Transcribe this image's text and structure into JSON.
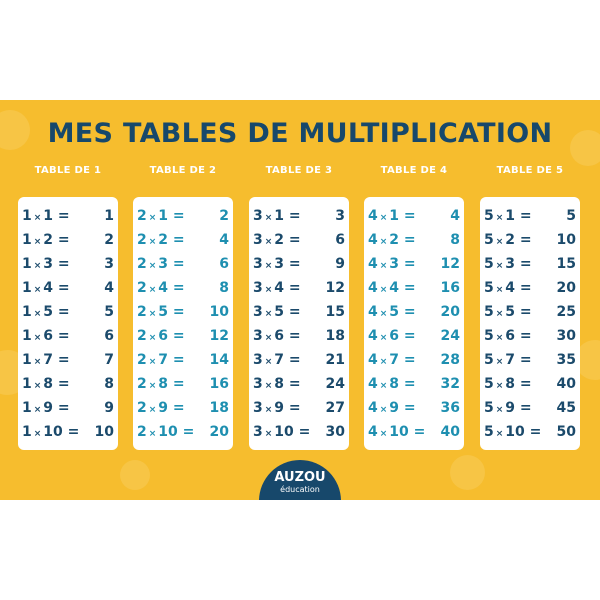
{
  "title": "MES TABLES DE MULTIPLICATION",
  "colors": {
    "background": "#f6bd2e",
    "navy": "#1b4a6b",
    "teal": "#1e8fb0",
    "card": "#ffffff"
  },
  "tables": [
    {
      "header": "TABLE DE 1",
      "color": "#1b4a6b",
      "rows": [
        [
          "1",
          "1",
          "1"
        ],
        [
          "1",
          "2",
          "2"
        ],
        [
          "1",
          "3",
          "3"
        ],
        [
          "1",
          "4",
          "4"
        ],
        [
          "1",
          "5",
          "5"
        ],
        [
          "1",
          "6",
          "6"
        ],
        [
          "1",
          "7",
          "7"
        ],
        [
          "1",
          "8",
          "8"
        ],
        [
          "1",
          "9",
          "9"
        ],
        [
          "1",
          "10",
          "10"
        ]
      ]
    },
    {
      "header": "TABLE DE 2",
      "color": "#1e8fb0",
      "rows": [
        [
          "2",
          "1",
          "2"
        ],
        [
          "2",
          "2",
          "4"
        ],
        [
          "2",
          "3",
          "6"
        ],
        [
          "2",
          "4",
          "8"
        ],
        [
          "2",
          "5",
          "10"
        ],
        [
          "2",
          "6",
          "12"
        ],
        [
          "2",
          "7",
          "14"
        ],
        [
          "2",
          "8",
          "16"
        ],
        [
          "2",
          "9",
          "18"
        ],
        [
          "2",
          "10",
          "20"
        ]
      ]
    },
    {
      "header": "TABLE DE 3",
      "color": "#1b4a6b",
      "rows": [
        [
          "3",
          "1",
          "3"
        ],
        [
          "3",
          "2",
          "6"
        ],
        [
          "3",
          "3",
          "9"
        ],
        [
          "3",
          "4",
          "12"
        ],
        [
          "3",
          "5",
          "15"
        ],
        [
          "3",
          "6",
          "18"
        ],
        [
          "3",
          "7",
          "21"
        ],
        [
          "3",
          "8",
          "24"
        ],
        [
          "3",
          "9",
          "27"
        ],
        [
          "3",
          "10",
          "30"
        ]
      ]
    },
    {
      "header": "TABLE DE 4",
      "color": "#1e8fb0",
      "rows": [
        [
          "4",
          "1",
          "4"
        ],
        [
          "4",
          "2",
          "8"
        ],
        [
          "4",
          "3",
          "12"
        ],
        [
          "4",
          "4",
          "16"
        ],
        [
          "4",
          "5",
          "20"
        ],
        [
          "4",
          "6",
          "24"
        ],
        [
          "4",
          "7",
          "28"
        ],
        [
          "4",
          "8",
          "32"
        ],
        [
          "4",
          "9",
          "36"
        ],
        [
          "4",
          "10",
          "40"
        ]
      ]
    },
    {
      "header": "TABLE DE 5",
      "color": "#1b4a6b",
      "rows": [
        [
          "5",
          "1",
          "5"
        ],
        [
          "5",
          "2",
          "10"
        ],
        [
          "5",
          "3",
          "15"
        ],
        [
          "5",
          "4",
          "20"
        ],
        [
          "5",
          "5",
          "25"
        ],
        [
          "5",
          "6",
          "30"
        ],
        [
          "5",
          "7",
          "35"
        ],
        [
          "5",
          "8",
          "40"
        ],
        [
          "5",
          "9",
          "45"
        ],
        [
          "5",
          "10",
          "50"
        ]
      ]
    }
  ],
  "logo": {
    "brand": "AUZOU",
    "sub": "éducation"
  }
}
